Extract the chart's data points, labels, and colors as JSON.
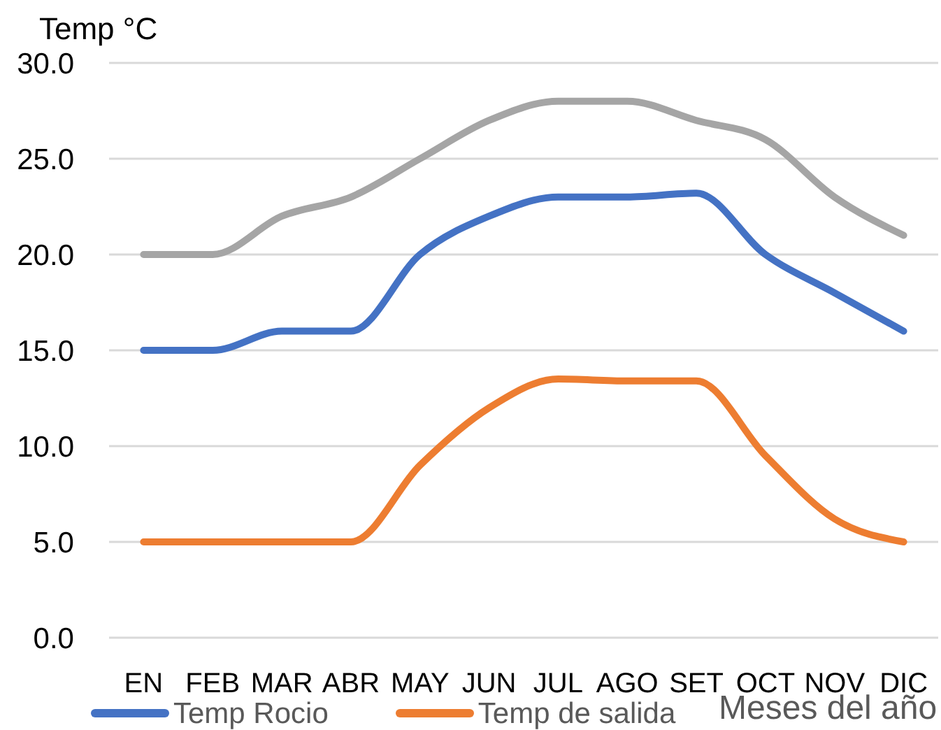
{
  "chart_data": {
    "type": "line",
    "ylabel": "Temp °C",
    "xlabel": "Meses del año",
    "categories": [
      "EN",
      "FEB",
      "MAR",
      "ABR",
      "MAY",
      "JUN",
      "JUL",
      "AGO",
      "SET",
      "OCT",
      "NOV",
      "DIC"
    ],
    "series": [
      {
        "name": "Temp Rocio",
        "color": "#4472c4",
        "values": [
          15,
          15,
          16,
          16,
          20,
          22,
          23,
          23,
          23.2,
          20,
          18,
          16
        ]
      },
      {
        "name": "Temp de salida",
        "color": "#ed7d31",
        "values": [
          5,
          5,
          5,
          5,
          9,
          12,
          13.5,
          13.4,
          13.4,
          9.5,
          6.2,
          5
        ]
      },
      {
        "color": "#a5a5a5",
        "values": [
          20,
          20,
          22,
          23,
          25,
          27,
          28,
          28,
          27,
          26,
          23,
          21
        ]
      }
    ],
    "ylim": [
      0,
      30
    ],
    "yticks": [
      {
        "value": 0,
        "label": "0.0"
      },
      {
        "value": 5,
        "label": "5.0"
      },
      {
        "value": 10,
        "label": "10.0"
      },
      {
        "value": 15,
        "label": "15.0"
      },
      {
        "value": 20,
        "label": "20.0"
      },
      {
        "value": 25,
        "label": "25.0"
      },
      {
        "value": 30,
        "label": "30.0"
      }
    ],
    "grid": "y",
    "legend": "bottom left",
    "marker": "none",
    "line_style": "solid"
  }
}
